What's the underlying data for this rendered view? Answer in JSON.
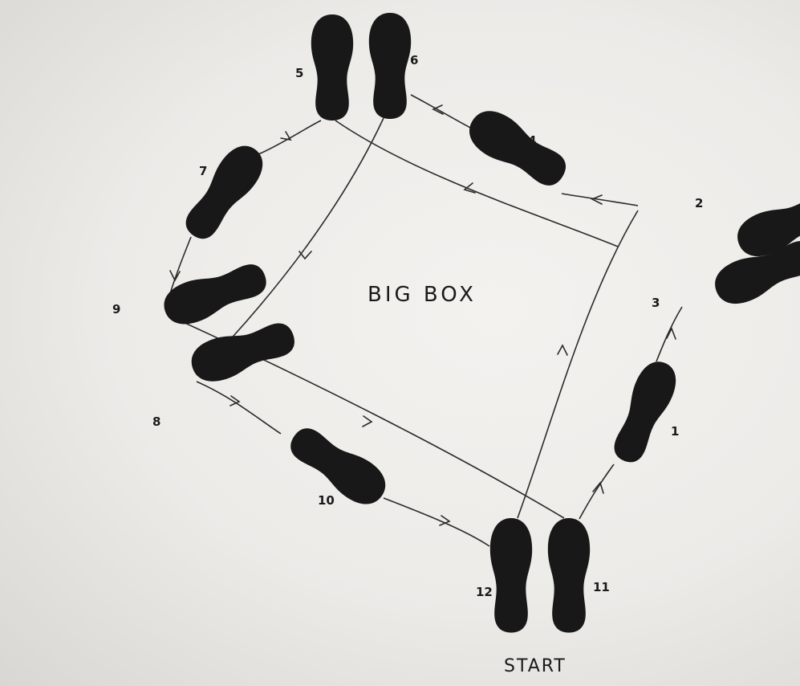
{
  "diagram": {
    "title": "BIG BOX",
    "start_label": "START",
    "footprints": [
      {
        "step": "1"
      },
      {
        "step": "2"
      },
      {
        "step": "3"
      },
      {
        "step": "4"
      },
      {
        "step": "5"
      },
      {
        "step": "6"
      },
      {
        "step": "7"
      },
      {
        "step": "8"
      },
      {
        "step": "9"
      },
      {
        "step": "10"
      },
      {
        "step": "11"
      },
      {
        "step": "12"
      }
    ],
    "colors": {
      "footprint": "#181818",
      "paper": "#efedea",
      "ink": "#2a2a2a"
    }
  }
}
